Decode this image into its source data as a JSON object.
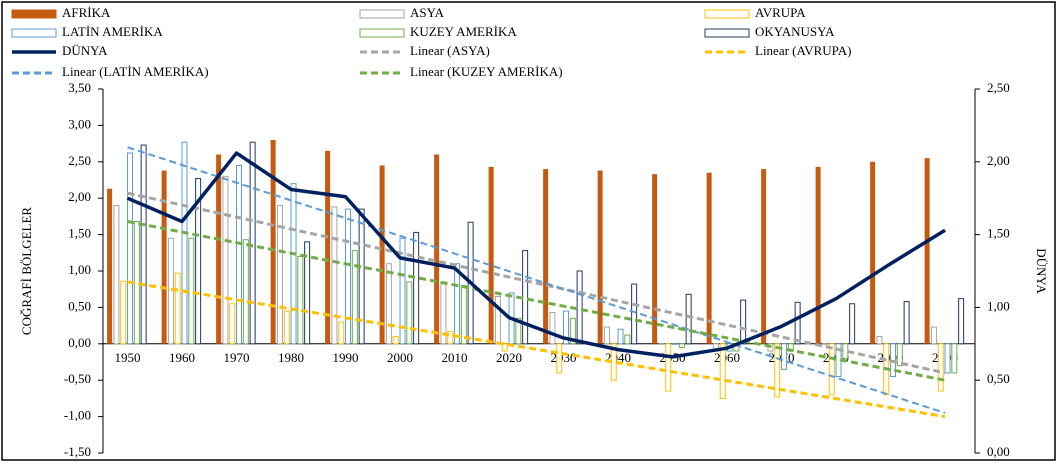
{
  "chart_data": {
    "type": "bar",
    "categories": [
      "1950",
      "1960",
      "1970",
      "1980",
      "1990",
      "2000",
      "2010",
      "2020",
      "2030",
      "2040",
      "2050",
      "2060",
      "2070",
      "2080",
      "2090",
      "2100"
    ],
    "ylabel": "COĞRAFİ BÖLGELER",
    "y2label": "DÜNYA",
    "ylim": [
      -1.5,
      3.5
    ],
    "yticks": [
      {
        "value": -1.5,
        "label": "-1,50"
      },
      {
        "value": -1,
        "label": "-1,00"
      },
      {
        "value": -0.5,
        "label": "-0,50"
      },
      {
        "value": 0,
        "label": "0,00"
      },
      {
        "value": 0.5,
        "label": "0,50"
      },
      {
        "value": 1,
        "label": "1,00"
      },
      {
        "value": 1.5,
        "label": "1,50"
      },
      {
        "value": 2,
        "label": "2,00"
      },
      {
        "value": 2.5,
        "label": "2,50"
      },
      {
        "value": 3,
        "label": "3,00"
      },
      {
        "value": 3.5,
        "label": "3,50"
      }
    ],
    "y2lim": [
      0,
      2.5
    ],
    "y2ticks": [
      {
        "value": 0,
        "label": "0,00"
      },
      {
        "value": 0.5,
        "label": "0,50"
      },
      {
        "value": 1,
        "label": "1,00"
      },
      {
        "value": 1.5,
        "label": "1,50"
      },
      {
        "value": 2,
        "label": "2,00"
      },
      {
        "value": 2.5,
        "label": "2,50"
      }
    ],
    "series": [
      {
        "name": "AFRİKA",
        "color": "#C55A11",
        "bar_style": "filled",
        "values": [
          2.13,
          2.38,
          2.6,
          2.8,
          2.65,
          2.45,
          2.6,
          2.43,
          2.4,
          2.38,
          2.33,
          2.35,
          2.4,
          2.43,
          2.5,
          2.55
        ]
      },
      {
        "name": "ASYA",
        "color": "#A5A5A5",
        "bar_style": "outline",
        "values": [
          1.9,
          1.45,
          2.3,
          1.9,
          1.88,
          1.1,
          0.85,
          0.65,
          0.43,
          0.23,
          0.0,
          -0.1,
          -0.1,
          0.0,
          0.1,
          0.23
        ]
      },
      {
        "name": "AVRUPA",
        "color": "#FFC000",
        "bar_style": "outline",
        "values": [
          0.86,
          0.97,
          0.55,
          0.45,
          0.3,
          0.1,
          0.17,
          -0.1,
          -0.4,
          -0.5,
          -0.65,
          -0.75,
          -0.73,
          -0.7,
          -0.7,
          -0.65
        ]
      },
      {
        "name": "LATİN AMERİKA",
        "color": "#5B9BD5",
        "bar_style": "outline",
        "values": [
          2.62,
          2.77,
          2.45,
          2.2,
          1.85,
          1.45,
          1.1,
          0.7,
          0.45,
          0.2,
          0.0,
          -0.1,
          -0.35,
          -0.45,
          -0.45,
          -0.4
        ]
      },
      {
        "name": "KUZEY AMERİKA",
        "color": "#70AD47",
        "bar_style": "outline",
        "values": [
          1.68,
          1.45,
          1.43,
          1.2,
          1.28,
          0.85,
          0.8,
          0.35,
          0.35,
          0.12,
          -0.05,
          -0.1,
          -0.1,
          -0.2,
          -0.3,
          -0.4
        ]
      },
      {
        "name": "OKYANUSYA",
        "color": "#1F3864",
        "bar_style": "outline",
        "values": [
          2.73,
          2.27,
          2.77,
          1.4,
          1.85,
          1.53,
          1.67,
          1.28,
          1.0,
          0.82,
          0.68,
          0.6,
          0.57,
          0.55,
          0.58,
          0.62
        ]
      },
      {
        "name": "DÜNYA",
        "color": "#002060",
        "type": "line",
        "axis": "y2",
        "values": [
          1.75,
          1.59,
          2.06,
          1.81,
          1.76,
          1.34,
          1.27,
          0.93,
          0.79,
          0.71,
          0.66,
          0.72,
          0.87,
          1.06,
          1.3,
          1.53
        ]
      }
    ],
    "trendlines": [
      {
        "name": "Linear (ASYA)",
        "color": "#A5A5A5",
        "values": [
          2.07,
          -0.4
        ]
      },
      {
        "name": "Linear (AVRUPA)",
        "color": "#FFC000",
        "values": [
          0.85,
          -1.0
        ]
      },
      {
        "name": "Linear (LATİN AMERİKA)",
        "color": "#5B9BD5",
        "values": [
          2.7,
          -0.95
        ]
      },
      {
        "name": "Linear (KUZEY AMERİKA)",
        "color": "#70AD47",
        "values": [
          1.68,
          -0.5
        ]
      }
    ]
  }
}
